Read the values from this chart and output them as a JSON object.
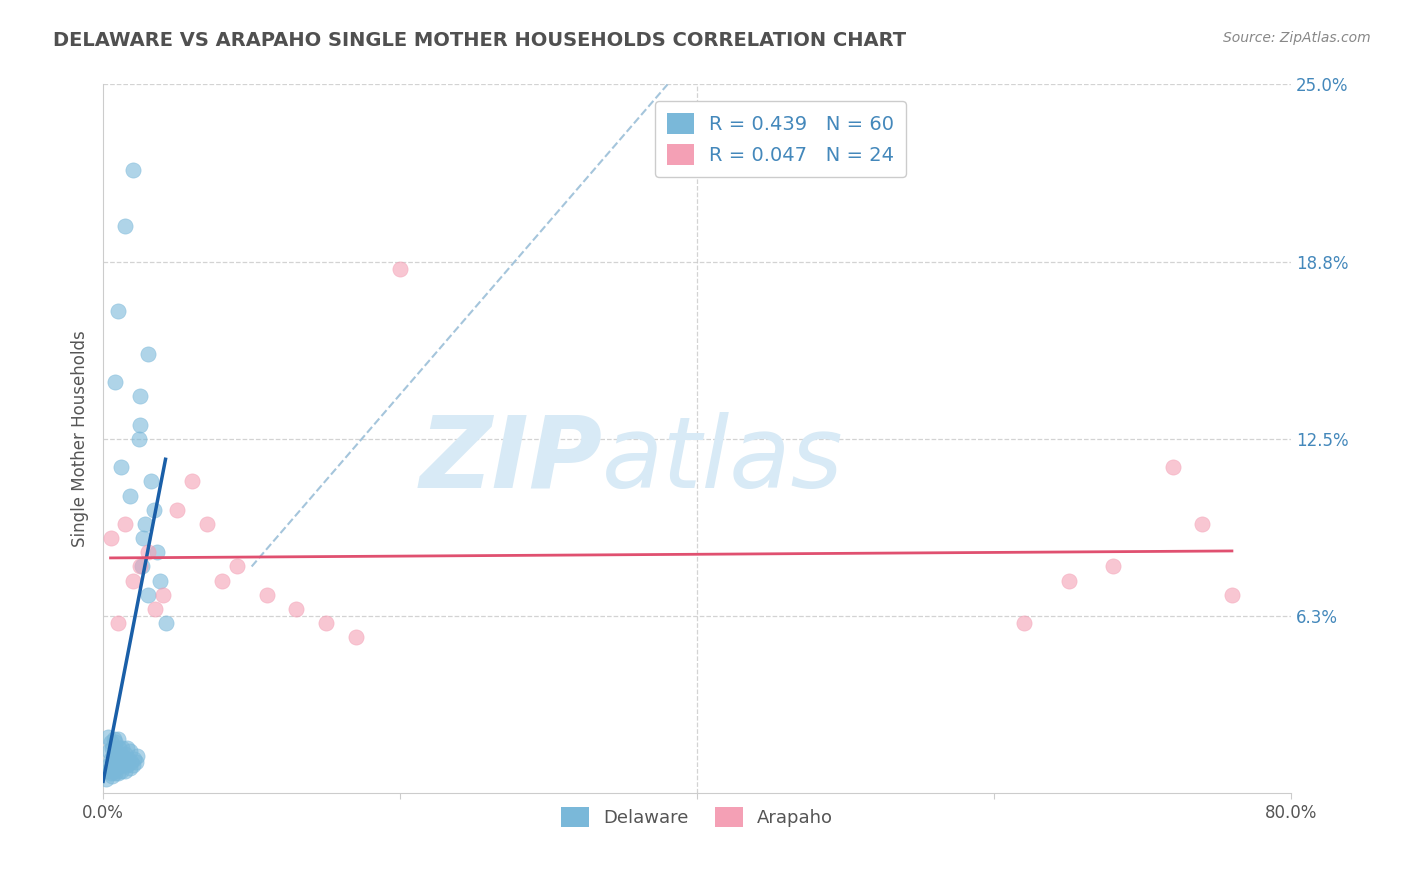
{
  "title": "DELAWARE VS ARAPAHO SINGLE MOTHER HOUSEHOLDS CORRELATION CHART",
  "source_text": "Source: ZipAtlas.com",
  "ylabel": "Single Mother Households",
  "xlim": [
    0.0,
    0.8
  ],
  "ylim": [
    0.0,
    0.25
  ],
  "yticks": [
    0.0,
    0.0625,
    0.125,
    0.1875,
    0.25
  ],
  "ytick_labels": [
    "",
    "6.3%",
    "12.5%",
    "18.8%",
    "25.0%"
  ],
  "xticks": [
    0.0,
    0.2,
    0.4,
    0.6,
    0.8
  ],
  "xtick_labels": [
    "0.0%",
    "",
    "",
    "",
    "80.0%"
  ],
  "delaware_R": 0.439,
  "delaware_N": 60,
  "arapaho_R": 0.047,
  "arapaho_N": 24,
  "delaware_color": "#7ab8d9",
  "arapaho_color": "#f4a0b5",
  "delaware_line_color": "#1a5fa8",
  "arapaho_line_color": "#e05070",
  "diagonal_line_color": "#9bbfd8",
  "background_color": "#ffffff",
  "grid_color": "#c8c8c8",
  "title_color": "#505050",
  "axis_label_color": "#555555",
  "tick_color": "#4488bb",
  "watermark_zip": "ZIP",
  "watermark_atlas": "atlas",
  "watermark_color": "#d8eaf6",
  "legend_border_color": "#cccccc",
  "source_color": "#888888",
  "del_x": [
    0.002,
    0.003,
    0.003,
    0.004,
    0.004,
    0.005,
    0.005,
    0.005,
    0.006,
    0.006,
    0.006,
    0.007,
    0.007,
    0.007,
    0.008,
    0.008,
    0.008,
    0.009,
    0.009,
    0.01,
    0.01,
    0.01,
    0.011,
    0.011,
    0.012,
    0.012,
    0.013,
    0.013,
    0.014,
    0.015,
    0.015,
    0.016,
    0.016,
    0.017,
    0.018,
    0.018,
    0.019,
    0.02,
    0.021,
    0.022,
    0.023,
    0.024,
    0.025,
    0.026,
    0.027,
    0.028,
    0.03,
    0.032,
    0.034,
    0.036,
    0.038,
    0.042,
    0.02,
    0.015,
    0.01,
    0.008,
    0.03,
    0.025,
    0.018,
    0.012
  ],
  "del_y": [
    0.005,
    0.008,
    0.02,
    0.01,
    0.015,
    0.007,
    0.012,
    0.018,
    0.006,
    0.01,
    0.016,
    0.008,
    0.013,
    0.019,
    0.007,
    0.012,
    0.018,
    0.009,
    0.015,
    0.007,
    0.013,
    0.019,
    0.01,
    0.016,
    0.008,
    0.014,
    0.01,
    0.016,
    0.012,
    0.008,
    0.014,
    0.01,
    0.016,
    0.012,
    0.009,
    0.015,
    0.011,
    0.01,
    0.012,
    0.011,
    0.013,
    0.125,
    0.13,
    0.08,
    0.09,
    0.095,
    0.07,
    0.11,
    0.1,
    0.085,
    0.075,
    0.06,
    0.22,
    0.2,
    0.17,
    0.145,
    0.155,
    0.14,
    0.105,
    0.115
  ],
  "ara_x": [
    0.005,
    0.01,
    0.015,
    0.02,
    0.025,
    0.03,
    0.035,
    0.04,
    0.05,
    0.06,
    0.07,
    0.08,
    0.09,
    0.11,
    0.13,
    0.15,
    0.17,
    0.2,
    0.62,
    0.65,
    0.68,
    0.72,
    0.74,
    0.76
  ],
  "ara_y": [
    0.09,
    0.06,
    0.095,
    0.075,
    0.08,
    0.085,
    0.065,
    0.07,
    0.1,
    0.11,
    0.095,
    0.075,
    0.08,
    0.07,
    0.065,
    0.06,
    0.055,
    0.185,
    0.06,
    0.075,
    0.08,
    0.115,
    0.095,
    0.07
  ]
}
